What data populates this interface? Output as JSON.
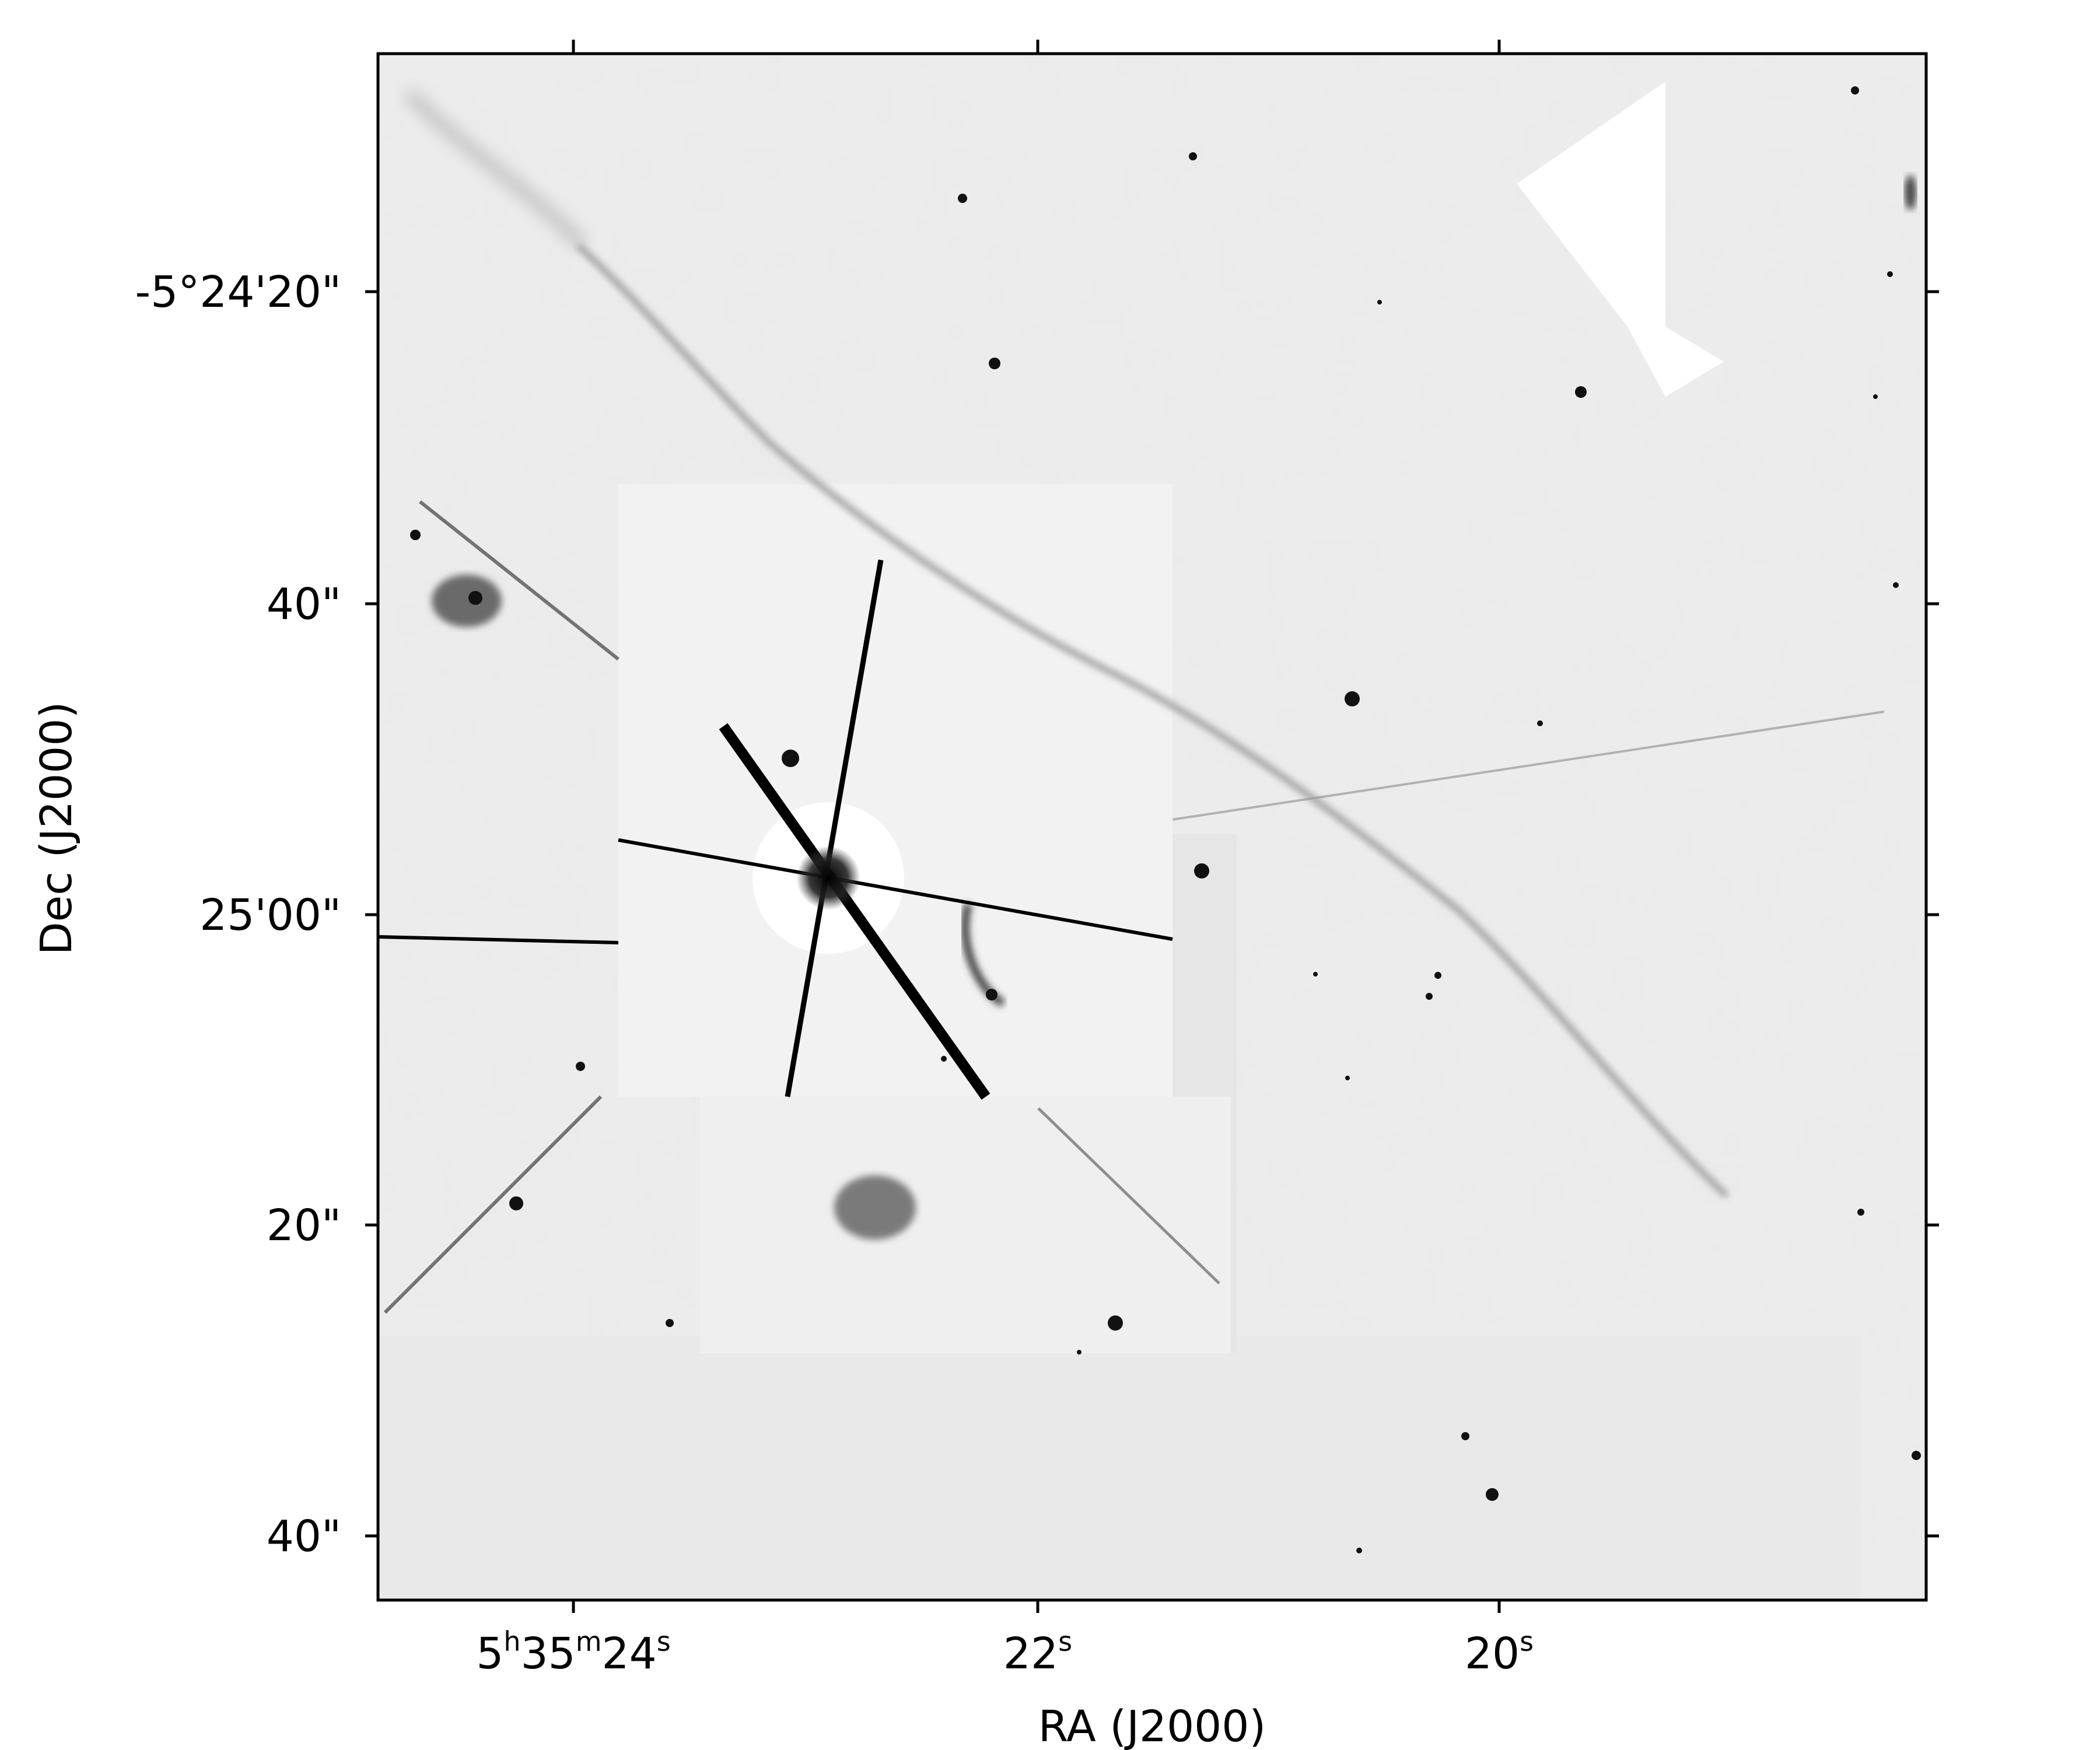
{
  "figure": {
    "x_axis": {
      "label": "RA (J2000)",
      "ticks": [
        {
          "hours": "5",
          "minutes": "35",
          "seconds": "24",
          "label_main": "24"
        },
        {
          "label_main": "22"
        },
        {
          "label_main": "20"
        }
      ]
    },
    "y_axis": {
      "label": "Dec (J2000)",
      "ticks": [
        "-5°24'20\"",
        "40\"",
        "25'00\"",
        "20\"",
        "40\""
      ]
    },
    "colors": {
      "background": "#ffffff",
      "sky": "#ececec",
      "frame": "#000000",
      "sources": "#111111"
    }
  }
}
